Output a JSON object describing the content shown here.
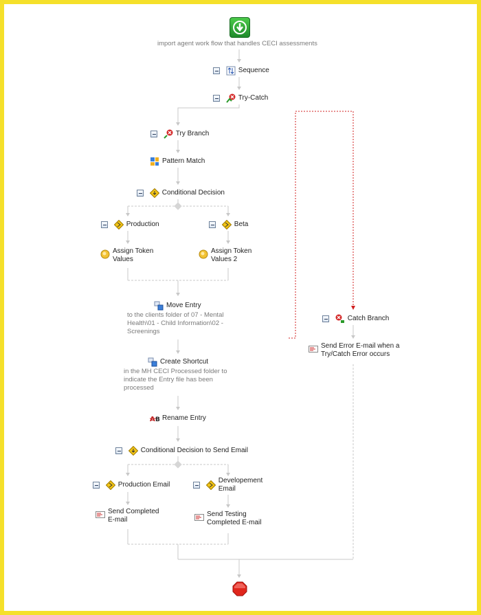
{
  "workflow": {
    "start_caption": "import agent work flow that handles CECI assessments",
    "sequence": "Sequence",
    "try_catch": "Try-Catch",
    "try_branch": "Try Branch",
    "pattern_match": "Pattern Match",
    "conditional_decision": "Conditional Decision",
    "production": "Production",
    "beta": "Beta",
    "assign_token_values": [
      "Assign Token",
      "Values"
    ],
    "assign_token_values_2": [
      "Assign Token",
      "Values 2"
    ],
    "move_entry": "Move Entry",
    "move_entry_desc": [
      "to the clients folder of 07 - Mental",
      "Health\\01 - Child Information\\02 -",
      "Screenings"
    ],
    "create_shortcut": "Create Shortcut",
    "create_shortcut_desc": [
      "in the MH CECI Processed folder to",
      "indicate the Entry file has been",
      "processed"
    ],
    "rename_entry": "Rename Entry",
    "conditional_decision_email": "Conditional Decision to Send Email",
    "production_email": "Production Email",
    "development_email": [
      "Developement",
      "Email"
    ],
    "send_completed_email": [
      "Send Completed",
      "E-mail"
    ],
    "send_testing_email": [
      "Send Testing",
      "Completed E-mail"
    ],
    "catch_branch": "Catch Branch",
    "send_error_email": [
      "Send Error E-mail when a",
      "Try/Catch Error occurs"
    ]
  },
  "colors": {
    "frame": "#f5e02a",
    "start": "#2ea043",
    "stop": "#e0261c",
    "connector": "#c8c8c8",
    "catch_link": "#d11f1f"
  }
}
